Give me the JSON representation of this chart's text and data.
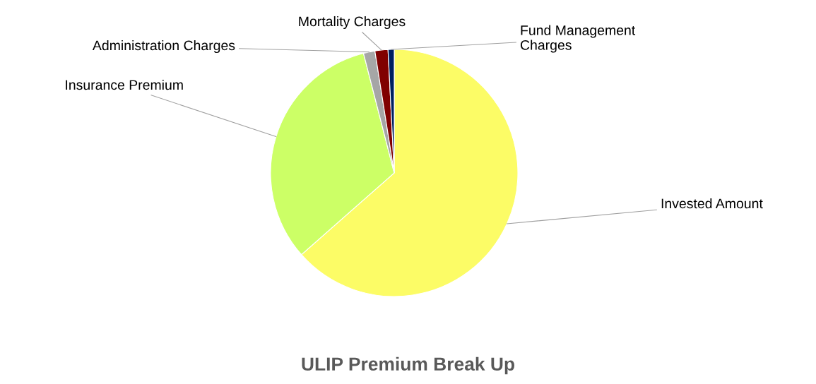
{
  "chart_data": {
    "type": "pie",
    "title": "ULIP Premium Break Up",
    "categories": [
      "Invested Amount",
      "Insurance Premium",
      "Administration Charges",
      "Mortality Charges",
      "Fund Management\nCharges"
    ],
    "values": [
      63.5,
      32.5,
      1.5,
      1.7,
      0.8
    ],
    "colors": [
      "#fcfc66",
      "#ccff66",
      "#a6a6a6",
      "#800000",
      "#002060"
    ],
    "legend": false
  }
}
